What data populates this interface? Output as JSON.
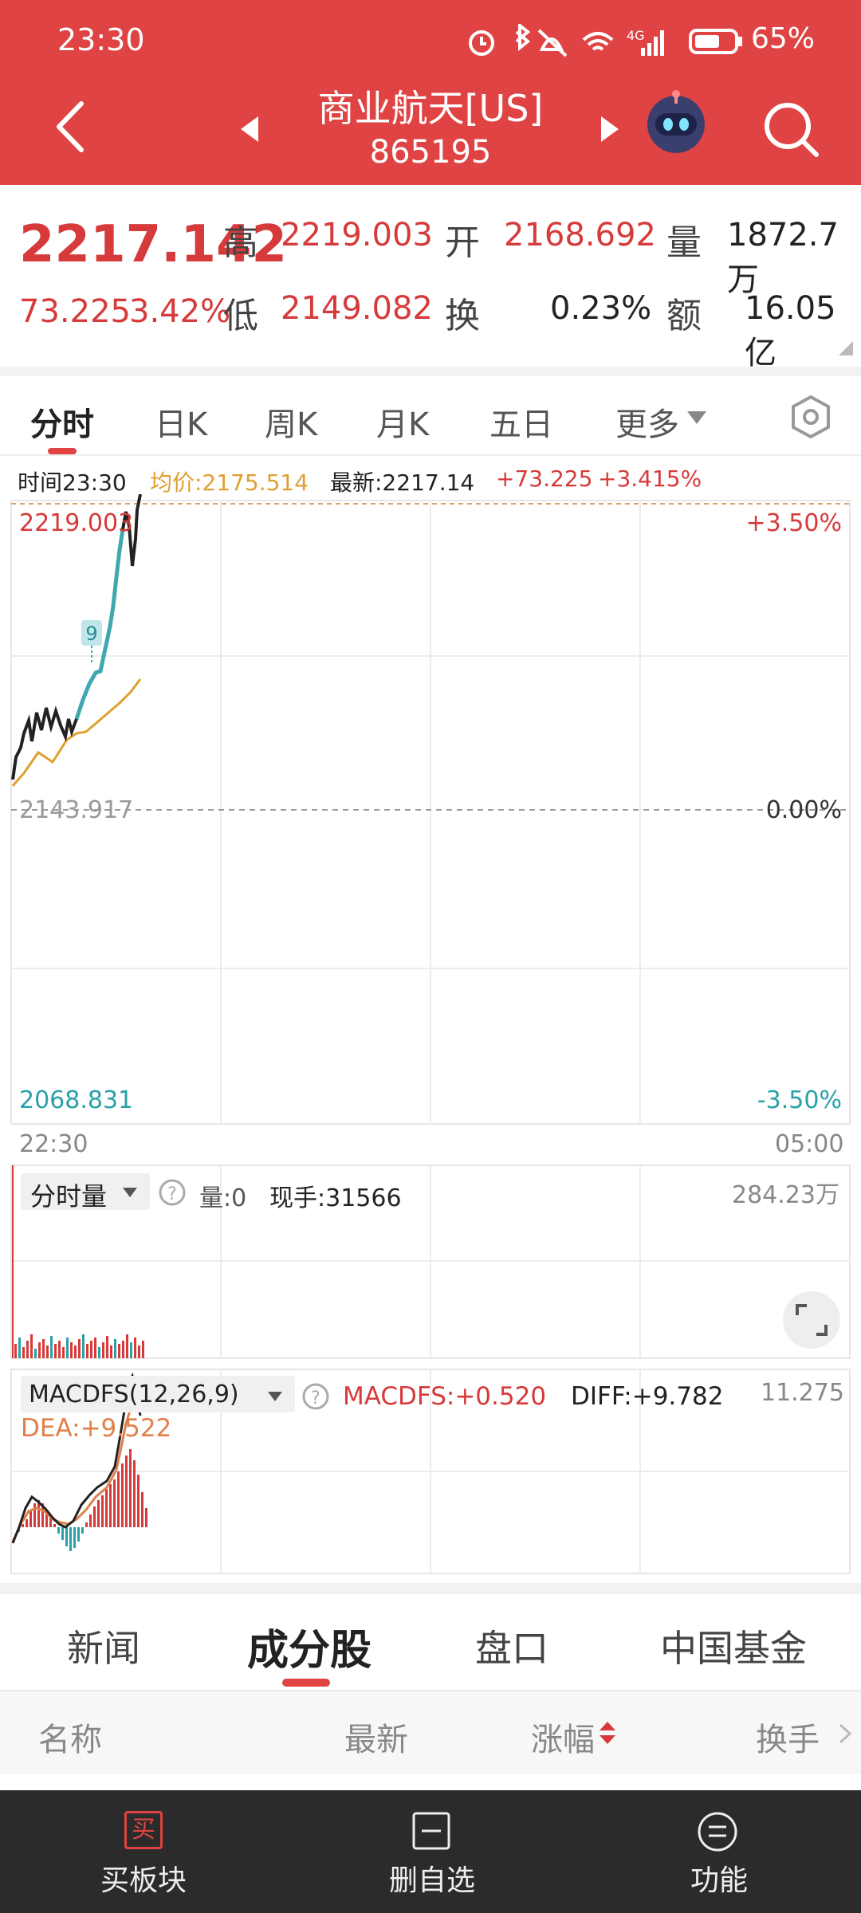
{
  "status_bar": {
    "time": "23:30",
    "battery": "65%"
  },
  "header": {
    "title": "商业航天[US]",
    "code": "865195"
  },
  "quote": {
    "price": "2217.142",
    "change": "73.225",
    "change_pct": "3.42%",
    "high_label": "高",
    "high": "2219.003",
    "low_label": "低",
    "low": "2149.082",
    "open_label": "开",
    "open": "2168.692",
    "turnover_label": "换",
    "turnover": "0.23%",
    "volume_label": "量",
    "volume": "1872.7万",
    "amount_label": "额",
    "amount": "16.05亿"
  },
  "period_tabs": [
    "分时",
    "日K",
    "周K",
    "月K",
    "五日",
    "更多"
  ],
  "info_line": {
    "time": "时间23:30",
    "avg": "均价:2175.514",
    "latest": "最新:2217.14",
    "change": "+73.225",
    "change_pct": "+3.415%"
  },
  "price_chart": {
    "y_top": "2219.003",
    "y_mid": "2143.917",
    "y_bottom": "2068.831",
    "pct_top": "+3.50%",
    "pct_mid": "0.00%",
    "pct_bottom": "-3.50%",
    "x_start": "22:30",
    "x_end": "05:00",
    "marker": "9"
  },
  "volume_panel": {
    "selector": "分时量",
    "vol": "量:0",
    "hand": "现手:31566",
    "max": "284.23万"
  },
  "macd_panel": {
    "selector": "MACDFS(12,26,9)",
    "macdfs": "MACDFS:+0.520",
    "diff": "DIFF:+9.782",
    "dea": "DEA:+9.522",
    "max": "11.275"
  },
  "content_tabs": [
    "新闻",
    "成分股",
    "盘口",
    "中国基金"
  ],
  "list_header": {
    "name": "名称",
    "latest": "最新",
    "change": "涨幅",
    "turnover": "换手"
  },
  "bottom_nav": {
    "buy": "买板块",
    "remove": "删自选",
    "func": "功能",
    "buy_icon_char": "买"
  },
  "colors": {
    "header_red": "#e04343",
    "up_red": "#d63a3a",
    "down_teal": "#2aa0a8",
    "avg_orange": "#e0a030"
  }
}
